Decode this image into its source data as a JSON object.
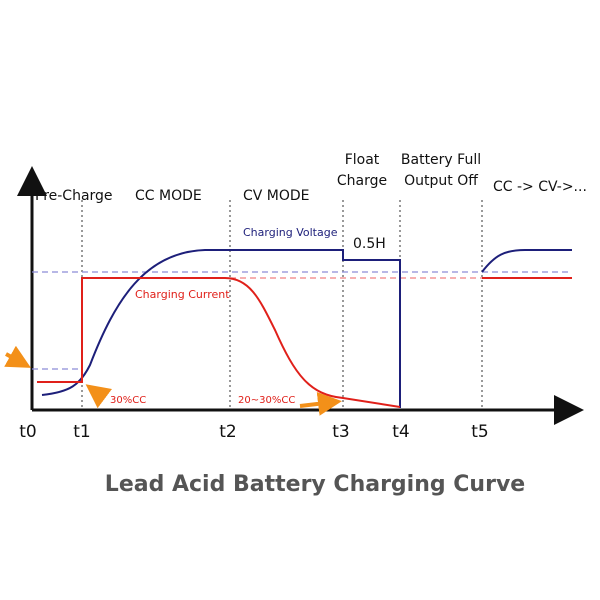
{
  "title": "Lead Acid Battery Charging Curve",
  "time_labels": [
    "t0",
    "t1",
    "t2",
    "t3",
    "t4",
    "t5"
  ],
  "phases": {
    "pre_charge": "Pre-Charge",
    "cc_mode": "CC MODE",
    "cv_mode": "CV MODE",
    "float_1": "Float",
    "float_2": "Charge",
    "full_1": "Battery Full",
    "full_2": "Output Off",
    "restart": "CC -> CV->..."
  },
  "annotations": {
    "voltage": "Charging Voltage",
    "current": "Charging Current",
    "float_duration": "0.5H",
    "pre_current": "30%CC",
    "end_current": "20~30%CC"
  }
}
